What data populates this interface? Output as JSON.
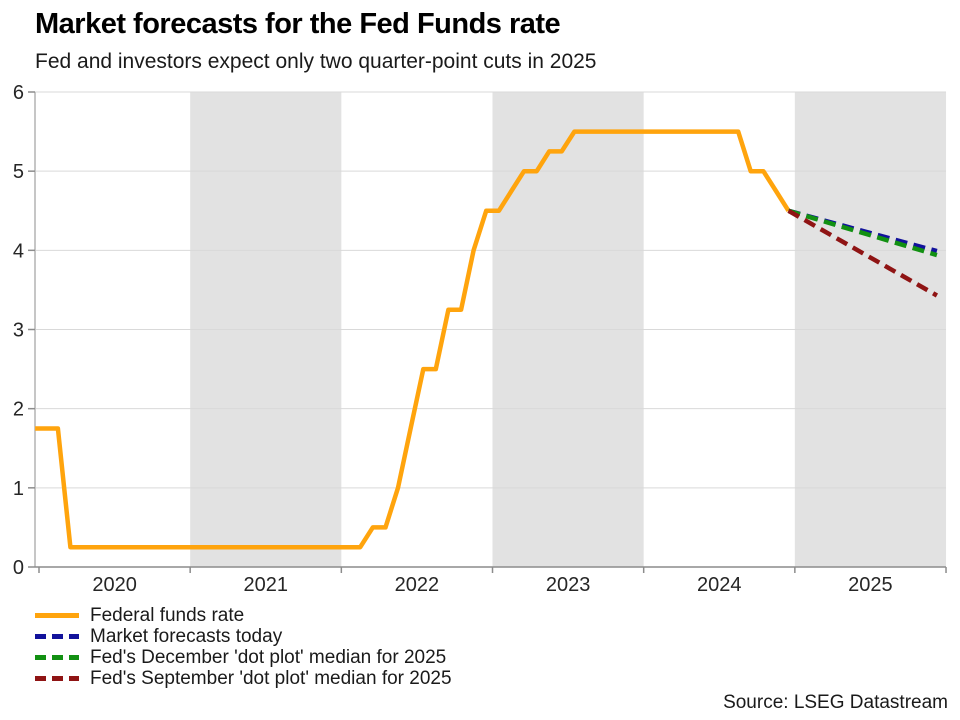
{
  "header": {
    "title": "Market forecasts for the Fed Funds rate",
    "subtitle": "Fed and investors expect only two quarter-point cuts in 2025"
  },
  "source": "Source: LSEG Datastream",
  "colors": {
    "fed_funds": "#FFA40D",
    "market_forecast": "#12129B",
    "dec_dot_plot": "#129012",
    "sep_dot_plot": "#8F1414",
    "band": "#E2E2E2",
    "gridline": "#D9D9D9",
    "axis": "#8C8C8C",
    "spine": "#C6C6C6",
    "tick_label": "#262626"
  },
  "legend": [
    {
      "label": "Federal funds rate",
      "color": "#FFA40D",
      "style": "solid"
    },
    {
      "label": "Market forecasts today",
      "color": "#12129B",
      "style": "dashed"
    },
    {
      "label": "Fed's December 'dot plot' median for 2025",
      "color": "#129012",
      "style": "dashed"
    },
    {
      "label": "Fed's September 'dot plot' median for 2025",
      "color": "#8F1414",
      "style": "dashed"
    }
  ],
  "chart_data": {
    "type": "line",
    "title": "Market forecasts for the Fed Funds rate",
    "subtitle": "Fed and investors expect only two quarter-point cuts in 2025",
    "xlabel": "",
    "ylabel": "",
    "xlim": [
      2019.974,
      2026.0
    ],
    "ylim": [
      0,
      6
    ],
    "y_ticks": [
      0,
      1,
      2,
      3,
      4,
      5,
      6
    ],
    "x_tick_years": [
      2020,
      2021,
      2022,
      2023,
      2024,
      2025,
      2026
    ],
    "x_year_labels": [
      "2020",
      "2021",
      "2022",
      "2023",
      "2024",
      "2025"
    ],
    "grid": "horizontal",
    "legend_position": "bottom-left",
    "shaded_bands": [
      [
        2021,
        2022
      ],
      [
        2023,
        2024
      ],
      [
        2025,
        2026
      ]
    ],
    "series": [
      {
        "name": "Federal funds rate",
        "color": "#FFA40D",
        "style": "solid",
        "points": [
          [
            2019.974,
            1.75
          ],
          [
            2020.125,
            1.75
          ],
          [
            2020.208,
            0.25
          ],
          [
            2022.125,
            0.25
          ],
          [
            2022.208,
            0.5
          ],
          [
            2022.292,
            0.5
          ],
          [
            2022.375,
            1.0
          ],
          [
            2022.458,
            1.75
          ],
          [
            2022.542,
            2.5
          ],
          [
            2022.625,
            2.5
          ],
          [
            2022.708,
            3.25
          ],
          [
            2022.792,
            3.25
          ],
          [
            2022.875,
            4.0
          ],
          [
            2022.958,
            4.5
          ],
          [
            2023.042,
            4.5
          ],
          [
            2023.125,
            4.75
          ],
          [
            2023.208,
            5.0
          ],
          [
            2023.292,
            5.0
          ],
          [
            2023.375,
            5.25
          ],
          [
            2023.458,
            5.25
          ],
          [
            2023.542,
            5.5
          ],
          [
            2024.625,
            5.5
          ],
          [
            2024.708,
            5.0
          ],
          [
            2024.792,
            5.0
          ],
          [
            2024.875,
            4.75
          ],
          [
            2024.958,
            4.5
          ]
        ]
      },
      {
        "name": "Market forecasts today",
        "color": "#12129B",
        "style": "dashed",
        "points": [
          [
            2024.958,
            4.5
          ],
          [
            2025.94,
            3.99
          ]
        ]
      },
      {
        "name": "Fed's December 'dot plot' median for 2025",
        "color": "#129012",
        "style": "dashed",
        "points": [
          [
            2024.958,
            4.5
          ],
          [
            2025.94,
            3.94
          ]
        ]
      },
      {
        "name": "Fed's September 'dot plot' median for 2025",
        "color": "#8F1414",
        "style": "dashed",
        "points": [
          [
            2024.958,
            4.5
          ],
          [
            2025.94,
            3.43
          ]
        ]
      }
    ]
  }
}
